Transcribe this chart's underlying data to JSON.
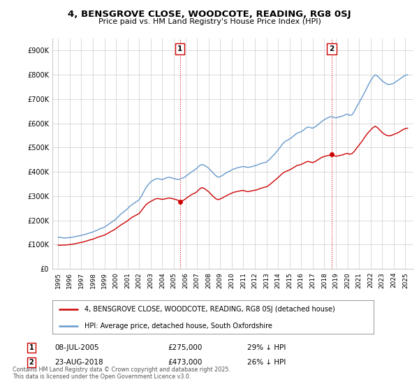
{
  "title": "4, BENSGROVE CLOSE, WOODCOTE, READING, RG8 0SJ",
  "subtitle": "Price paid vs. HM Land Registry's House Price Index (HPI)",
  "legend_property": "4, BENSGROVE CLOSE, WOODCOTE, READING, RG8 0SJ (detached house)",
  "legend_hpi": "HPI: Average price, detached house, South Oxfordshire",
  "annotation1_date": "08-JUL-2005",
  "annotation1_price": "£275,000",
  "annotation1_hpi": "29% ↓ HPI",
  "annotation1_year": 2005.53,
  "annotation1_value": 275000,
  "annotation2_date": "23-AUG-2018",
  "annotation2_price": "£473,000",
  "annotation2_hpi": "26% ↓ HPI",
  "annotation2_year": 2018.64,
  "annotation2_value": 473000,
  "ylabel_ticks": [
    0,
    100000,
    200000,
    300000,
    400000,
    500000,
    600000,
    700000,
    800000,
    900000
  ],
  "ylabel_labels": [
    "£0",
    "£100K",
    "£200K",
    "£300K",
    "£400K",
    "£500K",
    "£600K",
    "£700K",
    "£800K",
    "£900K"
  ],
  "ylim": [
    0,
    950000
  ],
  "xlim_start": 1994.5,
  "xlim_end": 2025.7,
  "property_color": "#cc0000",
  "hpi_color": "#6699cc",
  "vline_color": "#cc0000",
  "background_color": "#ffffff",
  "grid_color": "#cccccc",
  "footer": "Contains HM Land Registry data © Crown copyright and database right 2025.\nThis data is licensed under the Open Government Licence v3.0.",
  "hpi_data": [
    [
      1995.0,
      130000
    ],
    [
      1995.1,
      129500
    ],
    [
      1995.2,
      129000
    ],
    [
      1995.3,
      128500
    ],
    [
      1995.4,
      128000
    ],
    [
      1995.5,
      127500
    ],
    [
      1995.6,
      127000
    ],
    [
      1995.7,
      127500
    ],
    [
      1995.8,
      128000
    ],
    [
      1995.9,
      128500
    ],
    [
      1996.0,
      129000
    ],
    [
      1996.2,
      130000
    ],
    [
      1996.4,
      132000
    ],
    [
      1996.6,
      134000
    ],
    [
      1996.8,
      136000
    ],
    [
      1997.0,
      138000
    ],
    [
      1997.2,
      140000
    ],
    [
      1997.4,
      143000
    ],
    [
      1997.6,
      146000
    ],
    [
      1997.8,
      149000
    ],
    [
      1998.0,
      152000
    ],
    [
      1998.2,
      156000
    ],
    [
      1998.4,
      160000
    ],
    [
      1998.6,
      165000
    ],
    [
      1998.8,
      168000
    ],
    [
      1999.0,
      172000
    ],
    [
      1999.2,
      178000
    ],
    [
      1999.4,
      185000
    ],
    [
      1999.6,
      192000
    ],
    [
      1999.8,
      198000
    ],
    [
      2000.0,
      205000
    ],
    [
      2000.2,
      215000
    ],
    [
      2000.4,
      225000
    ],
    [
      2000.6,
      232000
    ],
    [
      2000.8,
      240000
    ],
    [
      2001.0,
      248000
    ],
    [
      2001.2,
      258000
    ],
    [
      2001.4,
      265000
    ],
    [
      2001.6,
      272000
    ],
    [
      2001.8,
      278000
    ],
    [
      2002.0,
      285000
    ],
    [
      2002.2,
      300000
    ],
    [
      2002.4,
      318000
    ],
    [
      2002.6,
      335000
    ],
    [
      2002.8,
      348000
    ],
    [
      2003.0,
      358000
    ],
    [
      2003.2,
      365000
    ],
    [
      2003.4,
      370000
    ],
    [
      2003.6,
      372000
    ],
    [
      2003.8,
      370000
    ],
    [
      2004.0,
      368000
    ],
    [
      2004.2,
      372000
    ],
    [
      2004.4,
      376000
    ],
    [
      2004.6,
      378000
    ],
    [
      2004.8,
      375000
    ],
    [
      2005.0,
      372000
    ],
    [
      2005.2,
      370000
    ],
    [
      2005.4,
      368000
    ],
    [
      2005.6,
      372000
    ],
    [
      2005.8,
      375000
    ],
    [
      2006.0,
      380000
    ],
    [
      2006.2,
      388000
    ],
    [
      2006.4,
      395000
    ],
    [
      2006.6,
      402000
    ],
    [
      2006.8,
      408000
    ],
    [
      2007.0,
      415000
    ],
    [
      2007.2,
      425000
    ],
    [
      2007.4,
      430000
    ],
    [
      2007.6,
      428000
    ],
    [
      2007.8,
      422000
    ],
    [
      2008.0,
      415000
    ],
    [
      2008.2,
      405000
    ],
    [
      2008.4,
      395000
    ],
    [
      2008.6,
      385000
    ],
    [
      2008.8,
      378000
    ],
    [
      2009.0,
      380000
    ],
    [
      2009.2,
      385000
    ],
    [
      2009.4,
      392000
    ],
    [
      2009.6,
      398000
    ],
    [
      2009.8,
      402000
    ],
    [
      2010.0,
      408000
    ],
    [
      2010.2,
      412000
    ],
    [
      2010.4,
      415000
    ],
    [
      2010.6,
      418000
    ],
    [
      2010.8,
      420000
    ],
    [
      2011.0,
      422000
    ],
    [
      2011.2,
      420000
    ],
    [
      2011.4,
      418000
    ],
    [
      2011.6,
      420000
    ],
    [
      2011.8,
      422000
    ],
    [
      2012.0,
      425000
    ],
    [
      2012.2,
      428000
    ],
    [
      2012.4,
      432000
    ],
    [
      2012.6,
      435000
    ],
    [
      2012.8,
      438000
    ],
    [
      2013.0,
      440000
    ],
    [
      2013.2,
      448000
    ],
    [
      2013.4,
      458000
    ],
    [
      2013.6,
      468000
    ],
    [
      2013.8,
      478000
    ],
    [
      2014.0,
      490000
    ],
    [
      2014.2,
      502000
    ],
    [
      2014.4,
      515000
    ],
    [
      2014.6,
      525000
    ],
    [
      2014.8,
      530000
    ],
    [
      2015.0,
      535000
    ],
    [
      2015.2,
      542000
    ],
    [
      2015.4,
      550000
    ],
    [
      2015.6,
      558000
    ],
    [
      2015.8,
      562000
    ],
    [
      2016.0,
      565000
    ],
    [
      2016.2,
      572000
    ],
    [
      2016.4,
      580000
    ],
    [
      2016.6,
      585000
    ],
    [
      2016.8,
      582000
    ],
    [
      2017.0,
      580000
    ],
    [
      2017.2,
      585000
    ],
    [
      2017.4,
      592000
    ],
    [
      2017.6,
      600000
    ],
    [
      2017.8,
      608000
    ],
    [
      2018.0,
      615000
    ],
    [
      2018.2,
      620000
    ],
    [
      2018.4,
      625000
    ],
    [
      2018.6,
      628000
    ],
    [
      2018.8,
      625000
    ],
    [
      2019.0,
      622000
    ],
    [
      2019.2,
      625000
    ],
    [
      2019.4,
      628000
    ],
    [
      2019.6,
      630000
    ],
    [
      2019.8,
      635000
    ],
    [
      2020.0,
      638000
    ],
    [
      2020.2,
      632000
    ],
    [
      2020.4,
      635000
    ],
    [
      2020.6,
      650000
    ],
    [
      2020.8,
      668000
    ],
    [
      2021.0,
      685000
    ],
    [
      2021.2,
      702000
    ],
    [
      2021.4,
      720000
    ],
    [
      2021.6,
      738000
    ],
    [
      2021.8,
      758000
    ],
    [
      2022.0,
      775000
    ],
    [
      2022.2,
      790000
    ],
    [
      2022.4,
      800000
    ],
    [
      2022.6,
      795000
    ],
    [
      2022.8,
      785000
    ],
    [
      2023.0,
      775000
    ],
    [
      2023.2,
      768000
    ],
    [
      2023.4,
      762000
    ],
    [
      2023.6,
      760000
    ],
    [
      2023.8,
      762000
    ],
    [
      2024.0,
      765000
    ],
    [
      2024.2,
      772000
    ],
    [
      2024.4,
      778000
    ],
    [
      2024.6,
      785000
    ],
    [
      2024.8,
      792000
    ],
    [
      2025.0,
      798000
    ],
    [
      2025.2,
      800000
    ]
  ],
  "property_data": [
    [
      1995.0,
      98000
    ],
    [
      1995.1,
      97500
    ],
    [
      1995.2,
      97000
    ],
    [
      1995.3,
      97500
    ],
    [
      1995.4,
      98000
    ],
    [
      1995.5,
      98500
    ],
    [
      1995.6,
      98000
    ],
    [
      1995.7,
      98500
    ],
    [
      1995.8,
      99000
    ],
    [
      1995.9,
      99500
    ],
    [
      1996.0,
      100000
    ],
    [
      1996.2,
      101000
    ],
    [
      1996.4,
      103000
    ],
    [
      1996.6,
      105000
    ],
    [
      1996.8,
      107000
    ],
    [
      1997.0,
      109000
    ],
    [
      1997.2,
      111000
    ],
    [
      1997.4,
      114000
    ],
    [
      1997.6,
      117000
    ],
    [
      1997.8,
      120000
    ],
    [
      1998.0,
      122000
    ],
    [
      1998.2,
      126000
    ],
    [
      1998.4,
      130000
    ],
    [
      1998.6,
      133000
    ],
    [
      1998.8,
      136000
    ],
    [
      1999.0,
      139000
    ],
    [
      1999.2,
      144000
    ],
    [
      1999.4,
      149000
    ],
    [
      1999.6,
      155000
    ],
    [
      1999.8,
      160000
    ],
    [
      2000.0,
      166000
    ],
    [
      2000.2,
      173000
    ],
    [
      2000.4,
      180000
    ],
    [
      2000.6,
      186000
    ],
    [
      2000.8,
      192000
    ],
    [
      2001.0,
      198000
    ],
    [
      2001.2,
      206000
    ],
    [
      2001.4,
      213000
    ],
    [
      2001.6,
      218000
    ],
    [
      2001.8,
      223000
    ],
    [
      2002.0,
      228000
    ],
    [
      2002.2,
      240000
    ],
    [
      2002.4,
      253000
    ],
    [
      2002.6,
      265000
    ],
    [
      2002.8,
      272000
    ],
    [
      2003.0,
      278000
    ],
    [
      2003.2,
      283000
    ],
    [
      2003.4,
      288000
    ],
    [
      2003.6,
      290000
    ],
    [
      2003.8,
      288000
    ],
    [
      2004.0,
      286000
    ],
    [
      2004.2,
      288000
    ],
    [
      2004.4,
      290000
    ],
    [
      2004.6,
      292000
    ],
    [
      2004.8,
      290000
    ],
    [
      2005.0,
      288000
    ],
    [
      2005.2,
      285000
    ],
    [
      2005.4,
      282000
    ],
    [
      2005.53,
      275000
    ],
    [
      2005.6,
      278000
    ],
    [
      2005.8,
      282000
    ],
    [
      2006.0,
      288000
    ],
    [
      2006.2,
      295000
    ],
    [
      2006.4,
      302000
    ],
    [
      2006.6,
      308000
    ],
    [
      2006.8,
      312000
    ],
    [
      2007.0,
      318000
    ],
    [
      2007.2,
      328000
    ],
    [
      2007.4,
      335000
    ],
    [
      2007.6,
      332000
    ],
    [
      2007.8,
      325000
    ],
    [
      2008.0,
      318000
    ],
    [
      2008.2,
      308000
    ],
    [
      2008.4,
      298000
    ],
    [
      2008.6,
      290000
    ],
    [
      2008.8,
      285000
    ],
    [
      2009.0,
      288000
    ],
    [
      2009.2,
      292000
    ],
    [
      2009.4,
      298000
    ],
    [
      2009.6,
      303000
    ],
    [
      2009.8,
      308000
    ],
    [
      2010.0,
      312000
    ],
    [
      2010.2,
      316000
    ],
    [
      2010.4,
      318000
    ],
    [
      2010.6,
      320000
    ],
    [
      2010.8,
      322000
    ],
    [
      2011.0,
      323000
    ],
    [
      2011.2,
      320000
    ],
    [
      2011.4,
      318000
    ],
    [
      2011.6,
      320000
    ],
    [
      2011.8,
      322000
    ],
    [
      2012.0,
      324000
    ],
    [
      2012.2,
      326000
    ],
    [
      2012.4,
      330000
    ],
    [
      2012.6,
      333000
    ],
    [
      2012.8,
      336000
    ],
    [
      2013.0,
      338000
    ],
    [
      2013.2,
      344000
    ],
    [
      2013.4,
      352000
    ],
    [
      2013.6,
      360000
    ],
    [
      2013.8,
      368000
    ],
    [
      2014.0,
      376000
    ],
    [
      2014.2,
      385000
    ],
    [
      2014.4,
      394000
    ],
    [
      2014.6,
      400000
    ],
    [
      2014.8,
      404000
    ],
    [
      2015.0,
      408000
    ],
    [
      2015.2,
      413000
    ],
    [
      2015.4,
      419000
    ],
    [
      2015.6,
      425000
    ],
    [
      2015.8,
      428000
    ],
    [
      2016.0,
      430000
    ],
    [
      2016.2,
      435000
    ],
    [
      2016.4,
      440000
    ],
    [
      2016.6,
      443000
    ],
    [
      2016.8,
      440000
    ],
    [
      2017.0,
      438000
    ],
    [
      2017.2,
      442000
    ],
    [
      2017.4,
      448000
    ],
    [
      2017.6,
      454000
    ],
    [
      2017.8,
      460000
    ],
    [
      2018.0,
      463000
    ],
    [
      2018.2,
      466000
    ],
    [
      2018.4,
      468000
    ],
    [
      2018.6,
      470000
    ],
    [
      2018.64,
      473000
    ],
    [
      2018.8,
      468000
    ],
    [
      2019.0,
      464000
    ],
    [
      2019.2,
      466000
    ],
    [
      2019.4,
      468000
    ],
    [
      2019.6,
      470000
    ],
    [
      2019.8,
      474000
    ],
    [
      2020.0,
      476000
    ],
    [
      2020.2,
      472000
    ],
    [
      2020.4,
      475000
    ],
    [
      2020.6,
      485000
    ],
    [
      2020.8,
      498000
    ],
    [
      2021.0,
      510000
    ],
    [
      2021.2,
      522000
    ],
    [
      2021.4,
      536000
    ],
    [
      2021.6,
      550000
    ],
    [
      2021.8,
      562000
    ],
    [
      2022.0,
      572000
    ],
    [
      2022.2,
      582000
    ],
    [
      2022.4,
      588000
    ],
    [
      2022.6,
      582000
    ],
    [
      2022.8,
      572000
    ],
    [
      2023.0,
      562000
    ],
    [
      2023.2,
      555000
    ],
    [
      2023.4,
      550000
    ],
    [
      2023.6,
      548000
    ],
    [
      2023.8,
      550000
    ],
    [
      2024.0,
      554000
    ],
    [
      2024.2,
      558000
    ],
    [
      2024.4,
      562000
    ],
    [
      2024.6,
      568000
    ],
    [
      2024.8,
      574000
    ],
    [
      2025.0,
      578000
    ],
    [
      2025.2,
      580000
    ]
  ]
}
